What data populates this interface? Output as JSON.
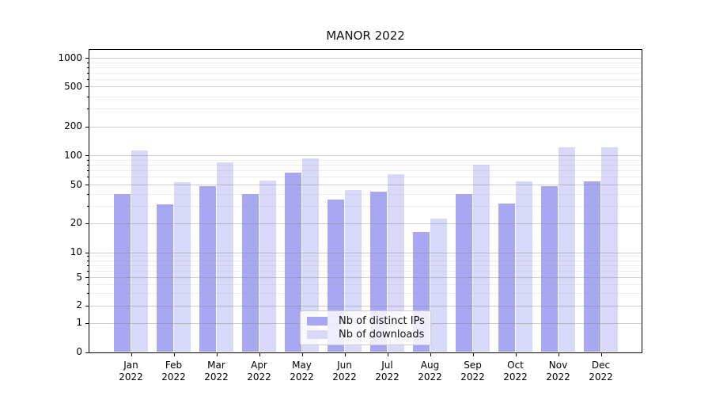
{
  "title": "MANOR 2022",
  "chart_data": {
    "type": "bar",
    "title": "MANOR 2022",
    "y_scale": "symlog",
    "categories": [
      "Jan 2022",
      "Feb 2022",
      "Mar 2022",
      "Apr 2022",
      "May 2022",
      "Jun 2022",
      "Jul 2022",
      "Aug 2022",
      "Sep 2022",
      "Oct 2022",
      "Nov 2022",
      "Dec 2022"
    ],
    "series": [
      {
        "name": "Nb of distinct IPs",
        "color": "#a7a7f2",
        "values": [
          40,
          31,
          48,
          40,
          66,
          35,
          42,
          16,
          40,
          32,
          48,
          54
        ]
      },
      {
        "name": "Nb of downloads",
        "color": "#d8d8f8",
        "values": [
          113,
          53,
          84,
          55,
          93,
          44,
          64,
          22,
          80,
          54,
          122,
          120
        ]
      }
    ],
    "y_ticks": [
      0,
      1,
      2,
      5,
      10,
      20,
      50,
      100,
      200,
      500,
      1000
    ],
    "ylim": [
      0,
      1244
    ],
    "xlabel": "",
    "ylabel": "",
    "grid": true,
    "legend_position": "lower center"
  },
  "colors": {
    "grid_major": "rgba(130,130,130,0.4)",
    "grid_minor": "rgba(160,160,160,0.18)",
    "spine": "#000000",
    "legend_bg": "rgba(255,255,255,0.8)",
    "legend_border": "#cccccc",
    "background": "#ffffff"
  }
}
